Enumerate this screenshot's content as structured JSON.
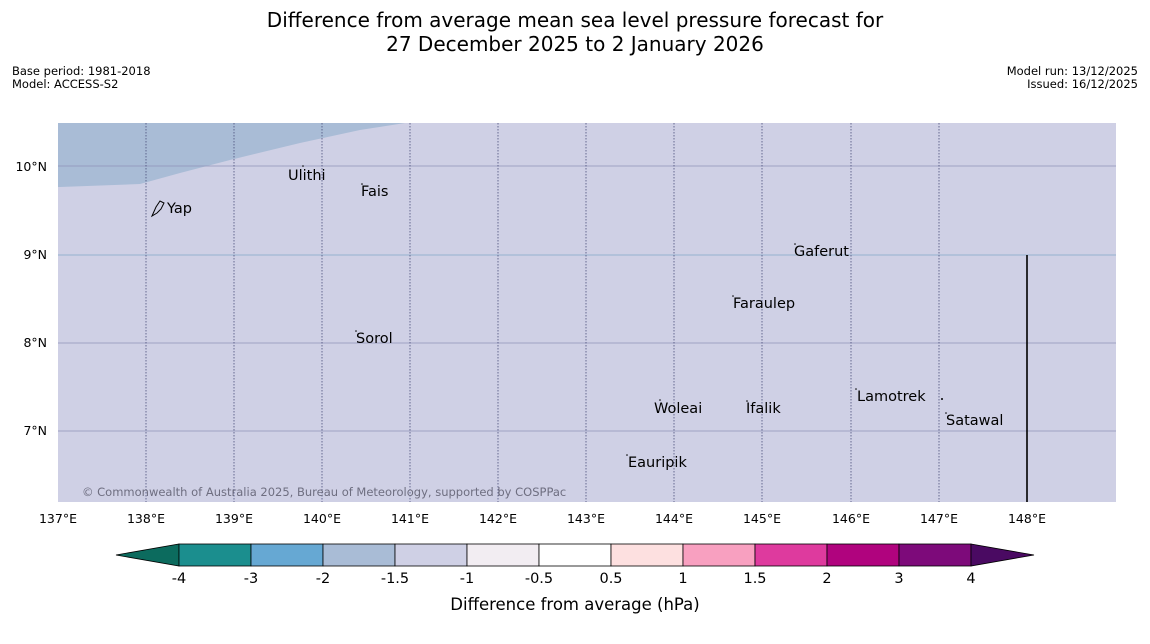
{
  "title": {
    "line1": "Difference from average mean sea level pressure forecast for",
    "line2": "27 December 2025 to 2 January 2026"
  },
  "meta_left": {
    "base_period": "Base period: 1981-2018",
    "model": "Model: ACCESS-S2"
  },
  "meta_right": {
    "model_run": "Model run: 13/12/2025",
    "issued": "Issued: 16/12/2025"
  },
  "map": {
    "lon_labels": [
      "137°E",
      "138°E",
      "139°E",
      "140°E",
      "141°E",
      "142°E",
      "143°E",
      "144°E",
      "145°E",
      "146°E",
      "147°E",
      "148°E"
    ],
    "lat_labels": [
      "10°N",
      "9°N",
      "8°N",
      "7°N"
    ],
    "places": [
      {
        "name": "Ulithi"
      },
      {
        "name": "Fais"
      },
      {
        "name": "Yap"
      },
      {
        "name": "Gaferut"
      },
      {
        "name": "Faraulep"
      },
      {
        "name": "Sorol"
      },
      {
        "name": "Lamotrek"
      },
      {
        "name": "Woleai"
      },
      {
        "name": "Ifalik"
      },
      {
        "name": "Satawal"
      },
      {
        "name": "Eauripik"
      }
    ],
    "copyright": "© Commonwealth of Australia 2025, Bureau of Meteorology, supported by COSPPac",
    "colors": {
      "background": "#cfd0e5",
      "region_low": "#a9bcd6"
    }
  },
  "colorbar": {
    "tick_labels": [
      "-4",
      "-3",
      "-2",
      "-1.5",
      "-1",
      "-0.5",
      "0.5",
      "1",
      "1.5",
      "2",
      "3",
      "4"
    ],
    "segment_colors": [
      "#1b8e8e",
      "#66a8d3",
      "#a9bcd6",
      "#cfd0e5",
      "#f2edf2",
      "#ffffff",
      "#fde0e0",
      "#f8a0c0",
      "#de3a9e",
      "#b0037e",
      "#7d0a7a"
    ],
    "low_extend_color": "#0c6b5e",
    "high_extend_color": "#4a0a62",
    "label": "Difference from average (hPa)"
  }
}
